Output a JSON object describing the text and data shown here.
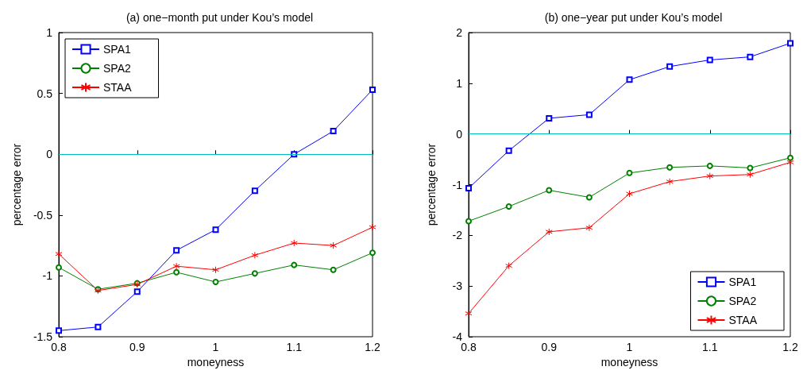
{
  "chart_data": [
    {
      "type": "line",
      "title": "(a) one−month put under Kou’s model",
      "xlabel": "moneyness",
      "ylabel": "percentage error",
      "x": [
        0.8,
        0.85,
        0.9,
        0.95,
        1.0,
        1.05,
        1.1,
        1.15,
        1.2
      ],
      "xlim": [
        0.8,
        1.2
      ],
      "xticks": [
        0.8,
        0.9,
        1,
        1.1,
        1.2
      ],
      "ylim": [
        -1.5,
        1
      ],
      "yticks": [
        -1.5,
        -1,
        -0.5,
        0,
        0.5,
        1
      ],
      "grid": false,
      "legend": "top left",
      "line_style": "solid",
      "ref_lines": [
        {
          "axis": "y",
          "value": 0,
          "color": "#00bfbf"
        }
      ],
      "series": [
        {
          "name": "SPA1",
          "color": "#0000ff",
          "marker": "square",
          "values": [
            -1.45,
            -1.42,
            -1.13,
            -0.79,
            -0.62,
            -0.3,
            0,
            0.19,
            0.53
          ]
        },
        {
          "name": "SPA2",
          "color": "#008000",
          "marker": "circle",
          "values": [
            -0.93,
            -1.11,
            -1.06,
            -0.97,
            -1.05,
            -0.98,
            -0.91,
            -0.95,
            -0.81
          ]
        },
        {
          "name": "STAA",
          "color": "#ff0000",
          "marker": "star",
          "values": [
            -0.82,
            -1.12,
            -1.07,
            -0.92,
            -0.95,
            -0.83,
            -0.73,
            -0.75,
            -0.6
          ]
        }
      ]
    },
    {
      "type": "line",
      "title": "(b) one−year put under Kou’s model",
      "xlabel": "moneyness",
      "ylabel": "percentage error",
      "x": [
        0.8,
        0.85,
        0.9,
        0.95,
        1.0,
        1.05,
        1.1,
        1.15,
        1.2
      ],
      "xlim": [
        0.8,
        1.2
      ],
      "xticks": [
        0.8,
        0.9,
        1,
        1.1,
        1.2
      ],
      "ylim": [
        -4,
        2
      ],
      "yticks": [
        -4,
        -3,
        -2,
        -1,
        0,
        1,
        2
      ],
      "grid": false,
      "legend": "bottom right",
      "line_style": "solid",
      "ref_lines": [
        {
          "axis": "y",
          "value": 0,
          "color": "#00bfbf"
        }
      ],
      "series": [
        {
          "name": "SPA1",
          "color": "#0000ff",
          "marker": "square",
          "values": [
            -1.07,
            -0.33,
            0.31,
            0.38,
            1.07,
            1.33,
            1.46,
            1.52,
            1.79
          ]
        },
        {
          "name": "SPA2",
          "color": "#008000",
          "marker": "circle",
          "values": [
            -1.72,
            -1.43,
            -1.11,
            -1.25,
            -0.77,
            -0.66,
            -0.63,
            -0.67,
            -0.47
          ]
        },
        {
          "name": "STAA",
          "color": "#ff0000",
          "marker": "star",
          "values": [
            -3.54,
            -2.6,
            -1.93,
            -1.85,
            -1.18,
            -0.94,
            -0.83,
            -0.8,
            -0.56
          ]
        }
      ]
    }
  ]
}
